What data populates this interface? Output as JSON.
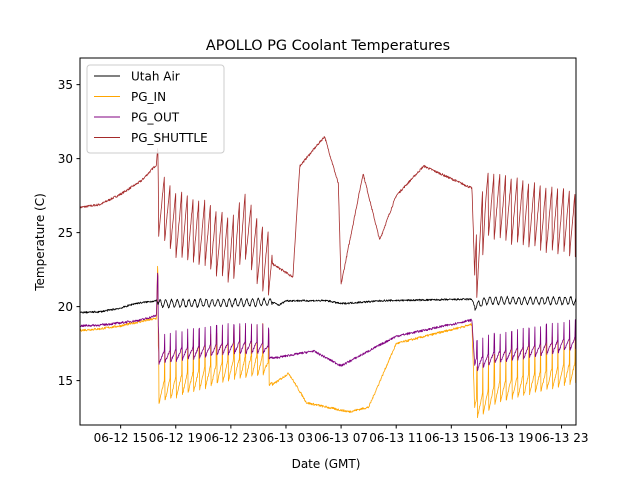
{
  "chart_data": {
    "type": "line",
    "title": "APOLLO PG Coolant Temperatures",
    "xlabel": "Date (GMT)",
    "ylabel": "Temperature (C)",
    "ylim": [
      12.0,
      36.8
    ],
    "xlim_hours": [
      -2.95,
      33.05
    ],
    "x_reference": "06-12 15:00 = hour 0",
    "grid": false,
    "legend_position": "top-left",
    "yticks": [
      15,
      20,
      25,
      30,
      35
    ],
    "xticks": [
      {
        "hour": 0,
        "label": "06-12 15"
      },
      {
        "hour": 4,
        "label": "06-12 19"
      },
      {
        "hour": 8,
        "label": "06-12 23"
      },
      {
        "hour": 12,
        "label": "06-13 03"
      },
      {
        "hour": 16,
        "label": "06-13 07"
      },
      {
        "hour": 20,
        "label": "06-13 11"
      },
      {
        "hour": 24,
        "label": "06-13 15"
      },
      {
        "hour": 28,
        "label": "06-13 19"
      },
      {
        "hour": 32,
        "label": "06-13 23"
      }
    ],
    "series": [
      {
        "name": "Utah Air",
        "color": "#000000",
        "points": [
          [
            -2.95,
            19.6
          ],
          [
            -1.5,
            19.65
          ],
          [
            0,
            19.9
          ],
          [
            1,
            20.2
          ],
          [
            2.6,
            20.4
          ],
          [
            2.7,
            20.2
          ],
          [
            11,
            20.3
          ],
          [
            11.5,
            20.1
          ],
          [
            12,
            20.4
          ],
          [
            15,
            20.4
          ],
          [
            16,
            20.2
          ],
          [
            19,
            20.4
          ],
          [
            25.5,
            20.5
          ],
          [
            25.7,
            20.0
          ],
          [
            26.5,
            20.4
          ],
          [
            33.05,
            20.4
          ]
        ]
      },
      {
        "name": "PG_IN",
        "color": "#ffa500",
        "points": [
          [
            -2.95,
            18.4
          ],
          [
            -1.5,
            18.5
          ],
          [
            0,
            18.7
          ],
          [
            1.5,
            19.0
          ],
          [
            2.6,
            19.2
          ],
          [
            2.7,
            23.5
          ],
          [
            2.75,
            14.1
          ],
          [
            4,
            14.5
          ],
          [
            8,
            15.7
          ],
          [
            10.5,
            16.0
          ],
          [
            11,
            14.7
          ],
          [
            12.2,
            15.5
          ],
          [
            13.5,
            13.5
          ],
          [
            16,
            13.0
          ],
          [
            16.6,
            12.9
          ],
          [
            18,
            13.2
          ],
          [
            20,
            17.5
          ],
          [
            25.5,
            18.8
          ],
          [
            25.7,
            13.0
          ],
          [
            27.5,
            14.2
          ],
          [
            33.05,
            15.5
          ]
        ]
      },
      {
        "name": "PG_OUT",
        "color": "#800080",
        "points": [
          [
            -2.95,
            18.7
          ],
          [
            -1.5,
            18.75
          ],
          [
            0,
            18.9
          ],
          [
            1.5,
            19.1
          ],
          [
            2.6,
            19.4
          ],
          [
            2.7,
            23.0
          ],
          [
            2.75,
            16.5
          ],
          [
            4,
            16.7
          ],
          [
            8,
            17.2
          ],
          [
            10.5,
            17.2
          ],
          [
            11,
            16.5
          ],
          [
            14,
            17.0
          ],
          [
            16,
            16.0
          ],
          [
            20,
            18.0
          ],
          [
            25.5,
            19.1
          ],
          [
            25.7,
            16.0
          ],
          [
            27,
            16.5
          ],
          [
            33.05,
            17.5
          ]
        ]
      },
      {
        "name": "PG_SHUTTLE",
        "color": "#a52a2a",
        "points": [
          [
            -2.95,
            26.7
          ],
          [
            -1.5,
            26.9
          ],
          [
            0,
            27.6
          ],
          [
            1.5,
            28.5
          ],
          [
            2.6,
            29.6
          ],
          [
            2.7,
            31.0
          ],
          [
            2.75,
            27.0
          ],
          [
            4,
            25.5
          ],
          [
            6,
            25.0
          ],
          [
            8,
            23.8
          ],
          [
            9,
            25.5
          ],
          [
            10,
            23.5
          ],
          [
            12.5,
            22.0
          ],
          [
            13,
            29.5
          ],
          [
            14.8,
            31.5
          ],
          [
            15.8,
            28.3
          ],
          [
            16,
            21.5
          ],
          [
            17.6,
            29.0
          ],
          [
            18.8,
            24.5
          ],
          [
            20,
            27.5
          ],
          [
            22,
            29.5
          ],
          [
            25.5,
            28.0
          ],
          [
            25.7,
            22.0
          ],
          [
            26.5,
            27.0
          ],
          [
            33.05,
            25.5
          ]
        ]
      }
    ]
  }
}
